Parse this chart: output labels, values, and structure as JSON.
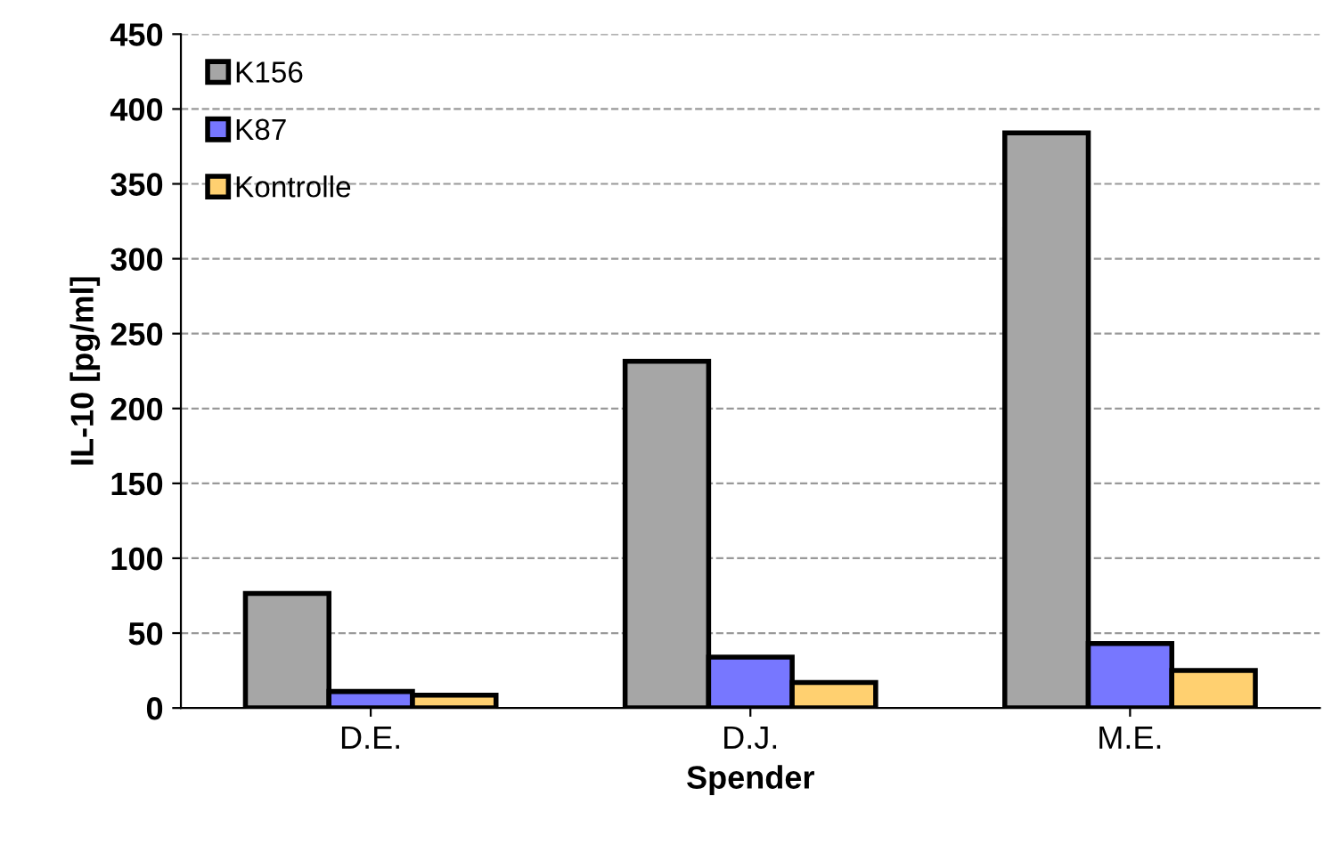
{
  "chart_data": {
    "type": "bar",
    "xlabel": "Spender",
    "ylabel": "IL-10 [pg/ml]",
    "categories": [
      "D.E.",
      "D.J.",
      "M.E."
    ],
    "series": [
      {
        "name": "K156",
        "color": "#a6a6a6",
        "values": [
          76.5,
          231.5,
          384
        ]
      },
      {
        "name": "K87",
        "color": "#7777ff",
        "values": [
          11,
          34,
          43
        ]
      },
      {
        "name": "Kontrolle",
        "color": "#ffd070",
        "values": [
          8.5,
          17,
          25
        ]
      }
    ],
    "ylim": [
      0,
      450
    ],
    "yticks": [
      0,
      50,
      100,
      150,
      200,
      250,
      300,
      350,
      400,
      450
    ],
    "grid": "y",
    "legend": "top left"
  }
}
